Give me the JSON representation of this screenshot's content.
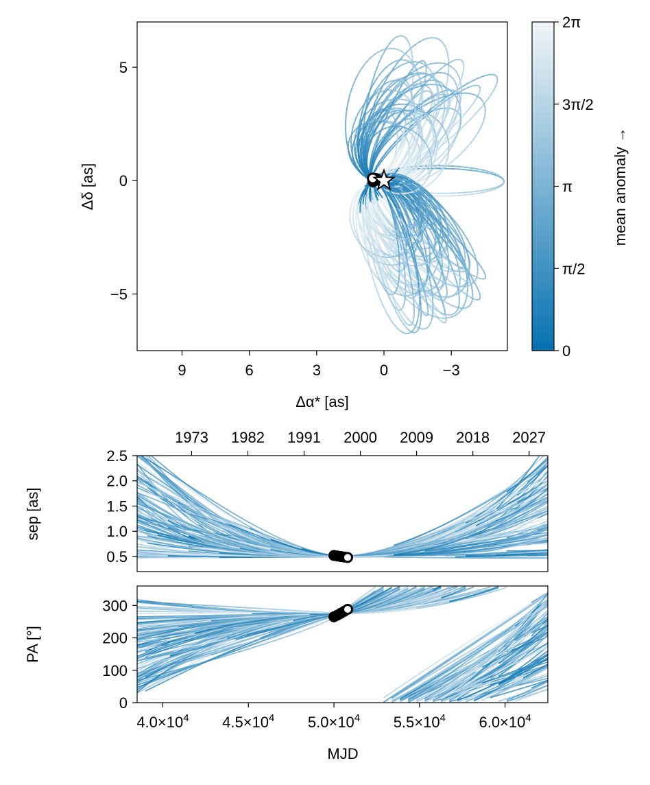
{
  "chart_data": [
    {
      "type": "line",
      "panel": "sky-plane orbits",
      "xlabel": "Δα* [as]",
      "ylabel": "Δδ [as]",
      "xlim": [
        11,
        -5.5
      ],
      "ylim": [
        -7.5,
        7
      ],
      "x_ticks": [
        9,
        6,
        3,
        0,
        -3
      ],
      "x_tick_labels": [
        "9",
        "6",
        "3",
        "0",
        "−3"
      ],
      "y_ticks": [
        5,
        0,
        -5
      ],
      "y_tick_labels": [
        "5",
        "0",
        "−5"
      ],
      "grid": false,
      "star_marker": {
        "x": 0,
        "y": 0
      },
      "observations": [
        {
          "x": 0.35,
          "y": 0.08
        },
        {
          "x": 0.38,
          "y": 0.05
        },
        {
          "x": 0.42,
          "y": 0.02
        },
        {
          "x": 0.45,
          "y": 0.0
        },
        {
          "x": 0.48,
          "y": -0.03
        },
        {
          "x": 0.5,
          "y": 0.1
        }
      ],
      "line_color": "#0571b0",
      "description_note_count": 90
    },
    {
      "type": "colorbar",
      "label": "mean anomaly →",
      "range": [
        0,
        6.2832
      ],
      "ticks": [
        0,
        1.5708,
        3.1416,
        4.7124,
        6.2832
      ],
      "tick_labels": [
        "0",
        "π/2",
        "π",
        "3π/2",
        "2π"
      ],
      "color_low": "#0571b0",
      "color_high": "#f2f6f8"
    },
    {
      "type": "line",
      "panel": "separation vs time",
      "ylabel": "sep [as]",
      "xlim": [
        38500,
        62500
      ],
      "ylim": [
        0.2,
        2.5
      ],
      "y_ticks": [
        0.5,
        1.0,
        1.5,
        2.0,
        2.5
      ],
      "y_tick_labels": [
        "0.5",
        "1.0",
        "1.5",
        "2.0",
        "2.5"
      ],
      "top_axis_years": [
        "1973",
        "1982",
        "1991",
        "2000",
        "2009",
        "2018",
        "2027"
      ],
      "top_axis_year_mjd": [
        41683,
        44970,
        48257,
        51544,
        54831,
        58118,
        61405
      ],
      "observations_mjd": [
        50000,
        50200,
        50400,
        50600,
        50800
      ],
      "observations_sep": [
        0.52,
        0.51,
        0.5,
        0.49,
        0.48
      ]
    },
    {
      "type": "line",
      "panel": "position angle vs time",
      "ylabel": "PA [°]",
      "xlabel": "MJD",
      "xlim": [
        38500,
        62500
      ],
      "ylim": [
        0,
        360
      ],
      "y_ticks": [
        0,
        100,
        200,
        300
      ],
      "y_tick_labels": [
        "0",
        "100",
        "200",
        "300"
      ],
      "x_ticks": [
        40000,
        45000,
        50000,
        55000,
        60000
      ],
      "x_tick_labels": [
        {
          "base": "4.0×10",
          "exp": "4"
        },
        {
          "base": "4.5×10",
          "exp": "4"
        },
        {
          "base": "5.0×10",
          "exp": "4"
        },
        {
          "base": "5.5×10",
          "exp": "4"
        },
        {
          "base": "6.0×10",
          "exp": "4"
        }
      ],
      "observations_mjd": [
        50000,
        50200,
        50400,
        50600,
        50800
      ],
      "observations_pa": [
        265,
        270,
        276,
        282,
        288
      ]
    }
  ]
}
